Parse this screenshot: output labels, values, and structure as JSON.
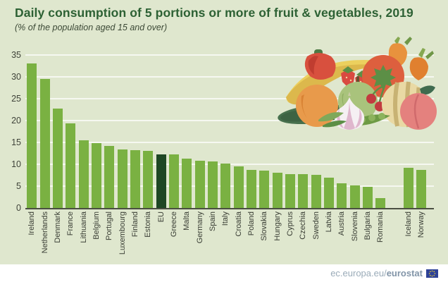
{
  "header": {
    "title": "Daily consumption of 5 portions or more of fruit & vegetables, 2019",
    "subtitle": "(% of the population aged 15 and over)"
  },
  "chart_data": {
    "type": "bar",
    "title": "Daily consumption of 5 portions or more of fruit & vegetables, 2019",
    "subtitle": "(% of the population aged 15 and over)",
    "xlabel": "",
    "ylabel": "% of the population aged 15 and over",
    "ylim": [
      0,
      35
    ],
    "yticks": [
      0,
      5,
      10,
      15,
      20,
      25,
      30,
      35
    ],
    "grid": "horizontal-white-lines",
    "legend": "none",
    "categories": [
      "Ireland",
      "Netherlands",
      "Denmark",
      "France",
      "Lithuania",
      "Belgium",
      "Portugal",
      "Luxembourg",
      "Finland",
      "Estonia",
      "EU",
      "Greece",
      "Malta",
      "Germany",
      "Spain",
      "Italy",
      "Croatia",
      "Poland",
      "Slovakia",
      "Hungary",
      "Cyprus",
      "Czechia",
      "Sweden",
      "Latvia",
      "Austria",
      "Slovenia",
      "Bulgaria",
      "Romania",
      "Iceland",
      "Norway"
    ],
    "values": [
      33.0,
      29.5,
      22.8,
      19.4,
      15.5,
      14.9,
      14.2,
      13.4,
      13.2,
      13.0,
      12.3,
      12.2,
      11.3,
      10.8,
      10.7,
      10.2,
      9.5,
      8.7,
      8.5,
      8.0,
      7.8,
      7.7,
      7.6,
      7.0,
      5.6,
      5.2,
      4.8,
      2.2,
      9.2,
      8.7
    ],
    "highlight_category": "EU",
    "highlight_index": 10,
    "gap_before_category": "Iceland",
    "gap_before_index": 28,
    "colors": {
      "bar": "#7ab142",
      "highlight_bar": "#1e4724",
      "page_background": "#dfe7ce",
      "gridline": "#f3f6ea",
      "title_text": "#2d6134",
      "axis_text": "#3f4339"
    }
  },
  "illustration": {
    "name": "fruit-and-vegetables",
    "items": [
      "cucumber",
      "banana",
      "red-pepper",
      "strawberries",
      "green-apple",
      "tomato",
      "cherries",
      "carrots",
      "orange",
      "garlic",
      "pea-pod",
      "melon",
      "peach",
      "leafy-greens"
    ]
  },
  "footer": {
    "link_prefix": "ec.europa.eu/",
    "link_bold": "eurostat",
    "icon": "eu-flag-icon"
  }
}
